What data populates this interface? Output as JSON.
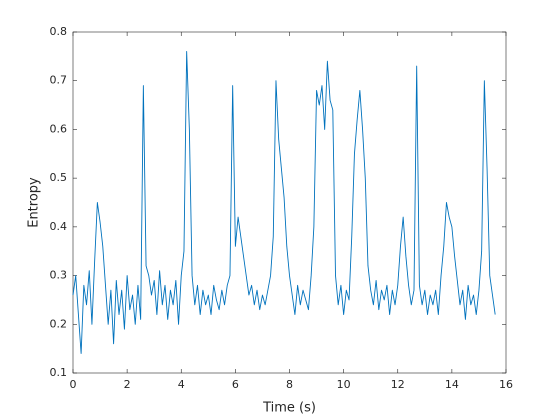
{
  "chart_data": {
    "type": "line",
    "xlabel": "Time (s)",
    "ylabel": "Entropy",
    "x": [
      0.0,
      0.1,
      0.2,
      0.3,
      0.4,
      0.5,
      0.6,
      0.7,
      0.8,
      0.9,
      1.0,
      1.1,
      1.2,
      1.3,
      1.4,
      1.5,
      1.6,
      1.7,
      1.8,
      1.9,
      2.0,
      2.1,
      2.2,
      2.3,
      2.4,
      2.5,
      2.6,
      2.7,
      2.8,
      2.9,
      3.0,
      3.1,
      3.2,
      3.3,
      3.4,
      3.5,
      3.6,
      3.7,
      3.8,
      3.9,
      4.0,
      4.1,
      4.2,
      4.3,
      4.4,
      4.5,
      4.6,
      4.7,
      4.8,
      4.9,
      5.0,
      5.1,
      5.2,
      5.3,
      5.4,
      5.5,
      5.6,
      5.7,
      5.8,
      5.9,
      6.0,
      6.1,
      6.2,
      6.3,
      6.4,
      6.5,
      6.6,
      6.7,
      6.8,
      6.9,
      7.0,
      7.1,
      7.2,
      7.3,
      7.4,
      7.5,
      7.6,
      7.7,
      7.8,
      7.9,
      8.0,
      8.1,
      8.2,
      8.3,
      8.4,
      8.5,
      8.6,
      8.7,
      8.8,
      8.9,
      9.0,
      9.1,
      9.2,
      9.3,
      9.4,
      9.5,
      9.6,
      9.7,
      9.8,
      9.9,
      10.0,
      10.1,
      10.2,
      10.3,
      10.4,
      10.5,
      10.6,
      10.7,
      10.8,
      10.9,
      11.0,
      11.1,
      11.2,
      11.3,
      11.4,
      11.5,
      11.6,
      11.7,
      11.8,
      11.9,
      12.0,
      12.1,
      12.2,
      12.3,
      12.4,
      12.5,
      12.6,
      12.7,
      12.8,
      12.9,
      13.0,
      13.1,
      13.2,
      13.3,
      13.4,
      13.5,
      13.6,
      13.7,
      13.8,
      13.9,
      14.0,
      14.1,
      14.2,
      14.3,
      14.4,
      14.5,
      14.6,
      14.7,
      14.8,
      14.9,
      15.0,
      15.1,
      15.2,
      15.3,
      15.4,
      15.5,
      15.6
    ],
    "series": [
      {
        "name": "Entropy",
        "color": "#0072bd",
        "values": [
          0.26,
          0.3,
          0.22,
          0.14,
          0.28,
          0.24,
          0.31,
          0.2,
          0.33,
          0.45,
          0.41,
          0.36,
          0.28,
          0.2,
          0.27,
          0.16,
          0.29,
          0.22,
          0.27,
          0.19,
          0.3,
          0.23,
          0.26,
          0.2,
          0.28,
          0.21,
          0.69,
          0.32,
          0.3,
          0.26,
          0.29,
          0.22,
          0.31,
          0.24,
          0.28,
          0.21,
          0.27,
          0.24,
          0.29,
          0.2,
          0.3,
          0.35,
          0.76,
          0.6,
          0.3,
          0.24,
          0.28,
          0.22,
          0.27,
          0.24,
          0.26,
          0.22,
          0.28,
          0.25,
          0.23,
          0.27,
          0.24,
          0.28,
          0.3,
          0.69,
          0.36,
          0.42,
          0.38,
          0.34,
          0.3,
          0.26,
          0.28,
          0.24,
          0.27,
          0.23,
          0.26,
          0.24,
          0.27,
          0.3,
          0.38,
          0.7,
          0.58,
          0.52,
          0.46,
          0.36,
          0.3,
          0.26,
          0.22,
          0.28,
          0.24,
          0.27,
          0.25,
          0.23,
          0.3,
          0.4,
          0.68,
          0.65,
          0.69,
          0.6,
          0.74,
          0.66,
          0.64,
          0.3,
          0.24,
          0.28,
          0.22,
          0.27,
          0.25,
          0.38,
          0.55,
          0.62,
          0.68,
          0.6,
          0.5,
          0.32,
          0.27,
          0.24,
          0.29,
          0.23,
          0.27,
          0.25,
          0.28,
          0.22,
          0.27,
          0.24,
          0.28,
          0.36,
          0.42,
          0.34,
          0.28,
          0.24,
          0.27,
          0.73,
          0.28,
          0.24,
          0.27,
          0.22,
          0.26,
          0.24,
          0.27,
          0.22,
          0.3,
          0.36,
          0.45,
          0.42,
          0.4,
          0.34,
          0.29,
          0.24,
          0.27,
          0.21,
          0.28,
          0.24,
          0.26,
          0.22,
          0.27,
          0.35,
          0.7,
          0.52,
          0.3,
          0.26,
          0.22
        ]
      }
    ],
    "xlim": [
      0,
      16
    ],
    "xticks": [
      0,
      2,
      4,
      6,
      8,
      10,
      12,
      14,
      16
    ],
    "ylim": [
      0.1,
      0.8
    ],
    "yticks": [
      0.1,
      0.2,
      0.3,
      0.4,
      0.5,
      0.6,
      0.7,
      0.8
    ],
    "grid": false
  }
}
